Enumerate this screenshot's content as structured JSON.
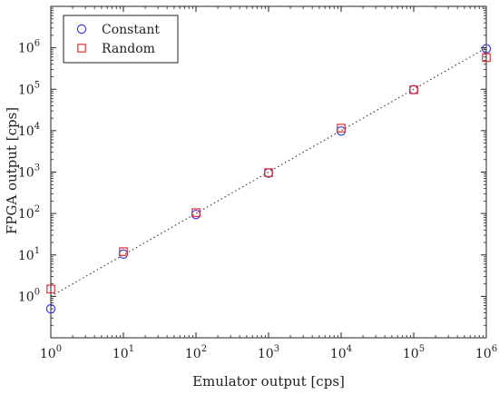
{
  "chart_data": {
    "type": "scatter",
    "title": "",
    "xlabel": "Emulator output [cps]",
    "ylabel": "FPGA output [cps]",
    "xscale": "log",
    "yscale": "log",
    "xlim": [
      1,
      1000000
    ],
    "ylim": [
      0.1,
      10000000
    ],
    "x_ticks": [
      {
        "base": "10",
        "exp": "0",
        "value": 1
      },
      {
        "base": "10",
        "exp": "1",
        "value": 10
      },
      {
        "base": "10",
        "exp": "2",
        "value": 100
      },
      {
        "base": "10",
        "exp": "3",
        "value": 1000
      },
      {
        "base": "10",
        "exp": "4",
        "value": 10000
      },
      {
        "base": "10",
        "exp": "5",
        "value": 100000
      },
      {
        "base": "10",
        "exp": "6",
        "value": 1000000
      }
    ],
    "y_ticks": [
      {
        "base": "10",
        "exp": "0",
        "value": 1
      },
      {
        "base": "10",
        "exp": "1",
        "value": 10
      },
      {
        "base": "10",
        "exp": "2",
        "value": 100
      },
      {
        "base": "10",
        "exp": "3",
        "value": 1000
      },
      {
        "base": "10",
        "exp": "4",
        "value": 10000
      },
      {
        "base": "10",
        "exp": "5",
        "value": 100000
      },
      {
        "base": "10",
        "exp": "6",
        "value": 1000000
      }
    ],
    "grid": false,
    "legend_position": "top-left",
    "reference_line": {
      "style": "dotted",
      "x": [
        1,
        1000000
      ],
      "y": [
        1,
        1000000
      ]
    },
    "series": [
      {
        "name": "Constant",
        "marker": "circle",
        "color": "#3b3bd9",
        "x": [
          1,
          10,
          100,
          1000,
          10000,
          100000,
          1000000
        ],
        "y": [
          0.5,
          10.5,
          95,
          950,
          9800,
          98000,
          950000
        ]
      },
      {
        "name": "Random",
        "marker": "square",
        "color": "#e03030",
        "x": [
          1,
          10,
          100,
          1000,
          10000,
          100000,
          1000000
        ],
        "y": [
          1.5,
          12,
          105,
          970,
          11500,
          97000,
          580000
        ]
      }
    ]
  }
}
